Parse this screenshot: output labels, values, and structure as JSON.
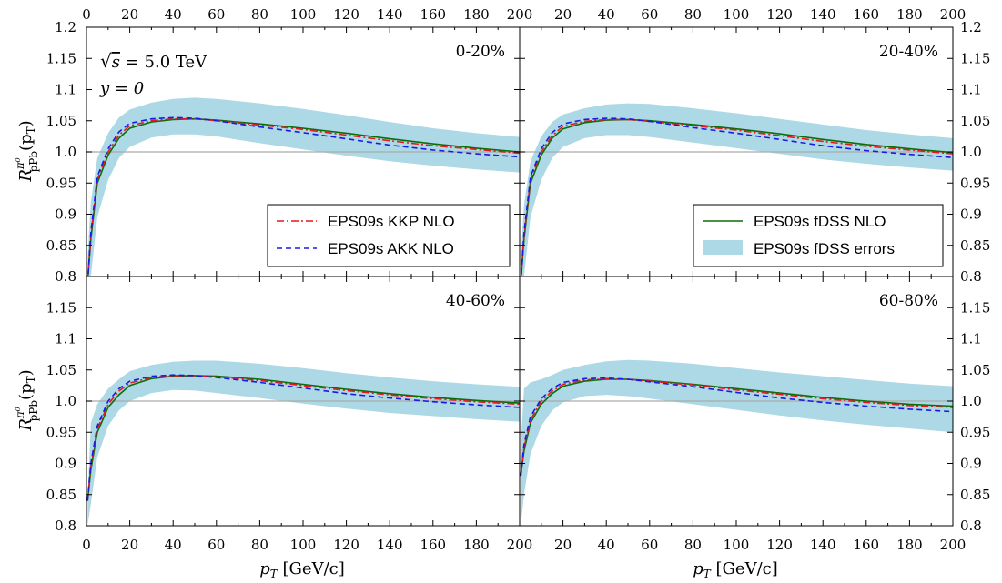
{
  "chart_data": {
    "type": "line",
    "layout": "2x2 panels sharing axes",
    "xlim": [
      0,
      200
    ],
    "ylim": [
      0.8,
      1.2
    ],
    "x_ticks": [
      0,
      20,
      40,
      60,
      80,
      100,
      120,
      140,
      160,
      180,
      200
    ],
    "y_ticks": [
      "0.8",
      "0.85",
      "0.9",
      "0.95",
      "1.0",
      "1.05",
      "1.1",
      "1.15",
      "1.2"
    ],
    "xlabel": {
      "symbol": "p",
      "sub": "T",
      "unit": " [GeV/c]"
    },
    "ylabel": {
      "symbol": "R",
      "sup": "π⁰",
      "sub": "pPb",
      "arg": "(p",
      "argsub": "T",
      "close": ")"
    },
    "reference_line": 1.0,
    "annotation": {
      "line1_sqrt": "s",
      "line1_value": " = 5.0 TeV",
      "line2": "y = 0"
    },
    "legend": {
      "left": [
        "EPS09s KKP NLO",
        "EPS09s AKK NLO"
      ],
      "right": [
        "EPS09s fDSS NLO",
        "EPS09s fDSS errors"
      ]
    },
    "colors": {
      "kkp": "#e41a1c",
      "akk": "#1a1ae6",
      "fdss": "#0a6e0a",
      "band": "#add8e6",
      "ref": "#aaaaaa"
    },
    "x": [
      0.5,
      2,
      5,
      10,
      15,
      20,
      30,
      40,
      50,
      60,
      80,
      100,
      120,
      140,
      160,
      180,
      200
    ],
    "panels": [
      {
        "label": "0-20%",
        "series": [
          {
            "name": "EPS09s fDSS NLO",
            "values": [
              0.79,
              0.86,
              0.95,
              0.995,
              1.022,
              1.038,
              1.048,
              1.052,
              1.053,
              1.051,
              1.045,
              1.038,
              1.03,
              1.021,
              1.013,
              1.006,
              1.0
            ]
          },
          {
            "name": "EPS09s KKP NLO",
            "values": [
              0.79,
              0.865,
              0.955,
              1.0,
              1.027,
              1.042,
              1.05,
              1.053,
              1.053,
              1.05,
              1.043,
              1.036,
              1.027,
              1.018,
              1.01,
              1.004,
              0.998
            ]
          },
          {
            "name": "EPS09s AKK NLO",
            "values": [
              0.79,
              0.87,
              0.96,
              1.005,
              1.032,
              1.046,
              1.053,
              1.055,
              1.054,
              1.05,
              1.04,
              1.031,
              1.021,
              1.011,
              1.003,
              0.997,
              0.992
            ]
          },
          {
            "name": "EPS09s fDSS errors",
            "upper": [
              0.83,
              0.92,
              0.99,
              1.03,
              1.055,
              1.068,
              1.079,
              1.085,
              1.087,
              1.085,
              1.078,
              1.069,
              1.059,
              1.048,
              1.038,
              1.03,
              1.024
            ],
            "lower": [
              0.77,
              0.8,
              0.895,
              0.955,
              0.99,
              1.008,
              1.023,
              1.028,
              1.028,
              1.025,
              1.014,
              1.004,
              0.994,
              0.985,
              0.978,
              0.972,
              0.967
            ]
          }
        ]
      },
      {
        "label": "20-40%",
        "series": [
          {
            "name": "EPS09s fDSS NLO",
            "values": [
              0.79,
              0.86,
              0.95,
              0.995,
              1.022,
              1.037,
              1.047,
              1.051,
              1.052,
              1.05,
              1.044,
              1.037,
              1.029,
              1.02,
              1.012,
              1.005,
              0.999
            ]
          },
          {
            "name": "EPS09s KKP NLO",
            "values": [
              0.79,
              0.865,
              0.955,
              1.0,
              1.026,
              1.041,
              1.049,
              1.052,
              1.052,
              1.049,
              1.042,
              1.035,
              1.026,
              1.017,
              1.009,
              1.003,
              0.997
            ]
          },
          {
            "name": "EPS09s AKK NLO",
            "values": [
              0.79,
              0.87,
              0.96,
              1.005,
              1.031,
              1.045,
              1.052,
              1.054,
              1.053,
              1.049,
              1.039,
              1.03,
              1.02,
              1.01,
              1.002,
              0.996,
              0.991
            ]
          },
          {
            "name": "EPS09s fDSS errors",
            "upper": [
              0.83,
              0.915,
              0.985,
              1.025,
              1.048,
              1.06,
              1.07,
              1.076,
              1.078,
              1.077,
              1.07,
              1.062,
              1.053,
              1.044,
              1.035,
              1.028,
              1.022
            ],
            "lower": [
              0.77,
              0.8,
              0.895,
              0.955,
              0.99,
              1.008,
              1.022,
              1.027,
              1.027,
              1.024,
              1.015,
              1.006,
              0.997,
              0.988,
              0.981,
              0.975,
              0.97
            ]
          }
        ]
      },
      {
        "label": "40-60%",
        "series": [
          {
            "name": "EPS09s fDSS NLO",
            "values": [
              0.84,
              0.89,
              0.95,
              0.99,
              1.01,
              1.025,
              1.036,
              1.04,
              1.041,
              1.04,
              1.035,
              1.027,
              1.019,
              1.012,
              1.006,
              1.001,
              0.997
            ]
          },
          {
            "name": "EPS09s KKP NLO",
            "values": [
              0.84,
              0.895,
              0.955,
              0.995,
              1.016,
              1.029,
              1.038,
              1.041,
              1.041,
              1.039,
              1.033,
              1.025,
              1.017,
              1.01,
              1.004,
              0.999,
              0.995
            ]
          },
          {
            "name": "EPS09s AKK NLO",
            "values": [
              0.84,
              0.9,
              0.96,
              1.0,
              1.02,
              1.032,
              1.04,
              1.042,
              1.041,
              1.038,
              1.03,
              1.021,
              1.012,
              1.005,
              0.999,
              0.994,
              0.99
            ]
          },
          {
            "name": "EPS09s fDSS errors",
            "upper": [
              0.84,
              0.965,
              0.995,
              1.02,
              1.035,
              1.048,
              1.058,
              1.063,
              1.065,
              1.065,
              1.06,
              1.053,
              1.045,
              1.038,
              1.032,
              1.027,
              1.023
            ],
            "lower": [
              0.8,
              0.835,
              0.91,
              0.96,
              0.985,
              1.0,
              1.013,
              1.018,
              1.017,
              1.013,
              1.005,
              0.996,
              0.988,
              0.981,
              0.976,
              0.971,
              0.967
            ]
          }
        ]
      },
      {
        "label": "60-80%",
        "series": [
          {
            "name": "EPS09s fDSS NLO",
            "values": [
              0.88,
              0.92,
              0.965,
              0.995,
              1.012,
              1.024,
              1.032,
              1.035,
              1.035,
              1.033,
              1.027,
              1.02,
              1.013,
              1.006,
              1.0,
              0.995,
              0.992
            ]
          },
          {
            "name": "EPS09s KKP NLO",
            "values": [
              0.88,
              0.925,
              0.97,
              1.0,
              1.016,
              1.027,
              1.034,
              1.036,
              1.035,
              1.032,
              1.026,
              1.018,
              1.011,
              1.004,
              0.998,
              0.993,
              0.99
            ]
          },
          {
            "name": "EPS09s AKK NLO",
            "values": [
              0.88,
              0.93,
              0.975,
              1.004,
              1.02,
              1.03,
              1.036,
              1.037,
              1.035,
              1.031,
              1.023,
              1.014,
              1.005,
              0.998,
              0.992,
              0.987,
              0.983
            ]
          },
          {
            "name": "EPS09s fDSS errors",
            "upper": [
              0.93,
              1.02,
              1.03,
              1.035,
              1.042,
              1.05,
              1.058,
              1.064,
              1.066,
              1.065,
              1.06,
              1.053,
              1.046,
              1.04,
              1.034,
              1.028,
              1.024
            ],
            "lower": [
              0.8,
              0.85,
              0.915,
              0.96,
              0.985,
              0.998,
              1.008,
              1.01,
              1.008,
              1.004,
              0.995,
              0.986,
              0.977,
              0.969,
              0.962,
              0.956,
              0.95
            ]
          }
        ]
      }
    ]
  }
}
